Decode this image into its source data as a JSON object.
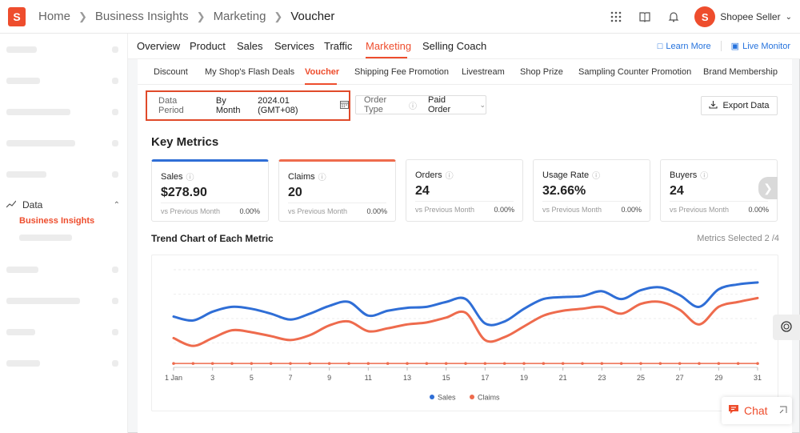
{
  "header": {
    "logo_letter": "S",
    "breadcrumb": [
      "Home",
      "Business Insights",
      "Marketing",
      "Voucher"
    ],
    "user_name": "Shopee Seller",
    "avatar_letter": "S",
    "icons": [
      "apps-grid-icon",
      "book-icon",
      "bell-icon"
    ]
  },
  "sidebar": {
    "data_label": "Data",
    "active_item": "Business Insights"
  },
  "main_tabs": [
    "Overview",
    "Product",
    "Sales",
    "Services",
    "Traffic",
    "Marketing",
    "Selling Coach"
  ],
  "active_main_tab": "Marketing",
  "links": {
    "learn_more": "Learn More",
    "live_monitor": "Live Monitor"
  },
  "sub_tabs": [
    "Discount",
    "My Shop's Flash Deals",
    "Voucher",
    "Shipping Fee Promotion",
    "Livestream",
    "Shop Prize",
    "Sampling Counter Promotion",
    "Brand Membership"
  ],
  "active_sub_tab": "Voucher",
  "filter": {
    "data_period_label": "Data Period",
    "period_mode": "By Month",
    "period_value": "2024.01 (GMT+08)",
    "order_type_label": "Order Type",
    "order_type_value": "Paid Order",
    "export_label": "Export Data"
  },
  "key_metrics_title": "Key Metrics",
  "metrics": [
    {
      "label": "Sales",
      "value": "$278.90",
      "vs": "vs Previous Month",
      "change": "0.00%"
    },
    {
      "label": "Claims",
      "value": "20",
      "vs": "vs Previous Month",
      "change": "0.00%"
    },
    {
      "label": "Orders",
      "value": "24",
      "vs": "vs Previous Month",
      "change": "0.00%"
    },
    {
      "label": "Usage Rate",
      "value": "32.66%",
      "vs": "vs Previous Month",
      "change": "0.00%"
    },
    {
      "label": "Buyers",
      "value": "24",
      "vs": "vs Previous Month",
      "change": "0.00%"
    }
  ],
  "trend": {
    "title": "Trend Chart of Each Metric",
    "metrics_selected": "Metrics Selected 2 /4"
  },
  "chat": {
    "label": "Chat"
  },
  "colors": {
    "brand": "#ee4d2d",
    "sales_line": "#2f6ed6",
    "claims_line": "#ee6b4d",
    "link": "#2673dd"
  },
  "chart_data": {
    "type": "line",
    "x_tick_labels": [
      "1 Jan",
      "3",
      "5",
      "7",
      "9",
      "11",
      "13",
      "15",
      "17",
      "19",
      "21",
      "23",
      "25",
      "27",
      "29",
      "31"
    ],
    "x": [
      1,
      2,
      3,
      4,
      5,
      6,
      7,
      8,
      9,
      10,
      11,
      12,
      13,
      14,
      15,
      16,
      17,
      18,
      19,
      20,
      21,
      22,
      23,
      24,
      25,
      26,
      27,
      28,
      29,
      30,
      31
    ],
    "series": [
      {
        "name": "Sales",
        "color": "#2f6ed6",
        "values": [
          52,
          48,
          57,
          62,
          60,
          55,
          49,
          55,
          63,
          67,
          53,
          58,
          61,
          62,
          67,
          70,
          45,
          47,
          60,
          70,
          72,
          73,
          78,
          70,
          79,
          82,
          74,
          62,
          80,
          85,
          87
        ]
      },
      {
        "name": "Claims",
        "color": "#ee6b4d",
        "values": [
          30,
          22,
          30,
          38,
          36,
          32,
          28,
          33,
          43,
          47,
          37,
          40,
          44,
          46,
          51,
          56,
          28,
          31,
          42,
          53,
          58,
          60,
          62,
          55,
          65,
          67,
          59,
          44,
          62,
          67,
          71
        ]
      },
      {
        "name": "",
        "color": "#ee6b4d",
        "values": [
          4,
          4,
          4,
          4,
          4,
          4,
          4,
          4,
          4,
          4,
          4,
          4,
          4,
          4,
          4,
          4,
          4,
          4,
          4,
          4,
          4,
          4,
          4,
          4,
          4,
          4,
          4,
          4,
          4,
          4,
          4
        ]
      }
    ],
    "ylim": [
      0,
      100
    ],
    "grid": true,
    "legend": "bottom"
  }
}
